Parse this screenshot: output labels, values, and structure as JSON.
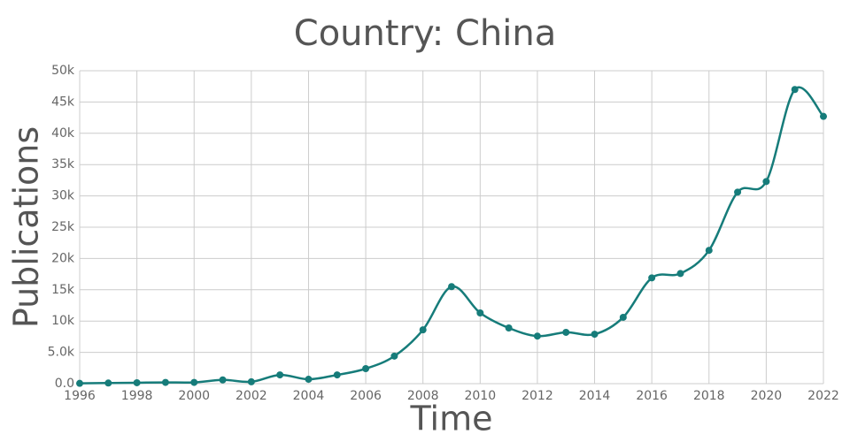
{
  "chart_data": {
    "type": "line",
    "title": "Country: China",
    "x_label": "Time",
    "y_label": "Publications",
    "x": [
      1996,
      1997,
      1998,
      1999,
      2000,
      2001,
      2002,
      2003,
      2004,
      2005,
      2006,
      2007,
      2008,
      2009,
      2010,
      2011,
      2012,
      2013,
      2014,
      2015,
      2016,
      2017,
      2018,
      2019,
      2020,
      2021,
      2022
    ],
    "series": [
      {
        "name": "China",
        "color": "#167c7a",
        "values": [
          50,
          100,
          150,
          200,
          200,
          600,
          300,
          1400,
          700,
          1400,
          2400,
          4400,
          8600,
          15500,
          11300,
          8900,
          7600,
          8200,
          7900,
          10600,
          16900,
          17600,
          21300,
          30600,
          32300,
          47000,
          42700
        ]
      }
    ],
    "xlim": [
      1996,
      2022
    ],
    "xticks": [
      1996,
      1998,
      2000,
      2002,
      2004,
      2006,
      2008,
      2010,
      2012,
      2014,
      2016,
      2018,
      2020,
      2022
    ],
    "ylim": [
      0,
      50000
    ],
    "yticks": [
      {
        "value": 0,
        "label": "0.0"
      },
      {
        "value": 5000,
        "label": "5.0k"
      },
      {
        "value": 10000,
        "label": "10k"
      },
      {
        "value": 15000,
        "label": "15k"
      },
      {
        "value": 20000,
        "label": "20k"
      },
      {
        "value": 25000,
        "label": "25k"
      },
      {
        "value": 30000,
        "label": "30k"
      },
      {
        "value": 35000,
        "label": "35k"
      },
      {
        "value": 40000,
        "label": "40k"
      },
      {
        "value": 45000,
        "label": "45k"
      },
      {
        "value": 50000,
        "label": "50k"
      }
    ],
    "grid": true
  }
}
